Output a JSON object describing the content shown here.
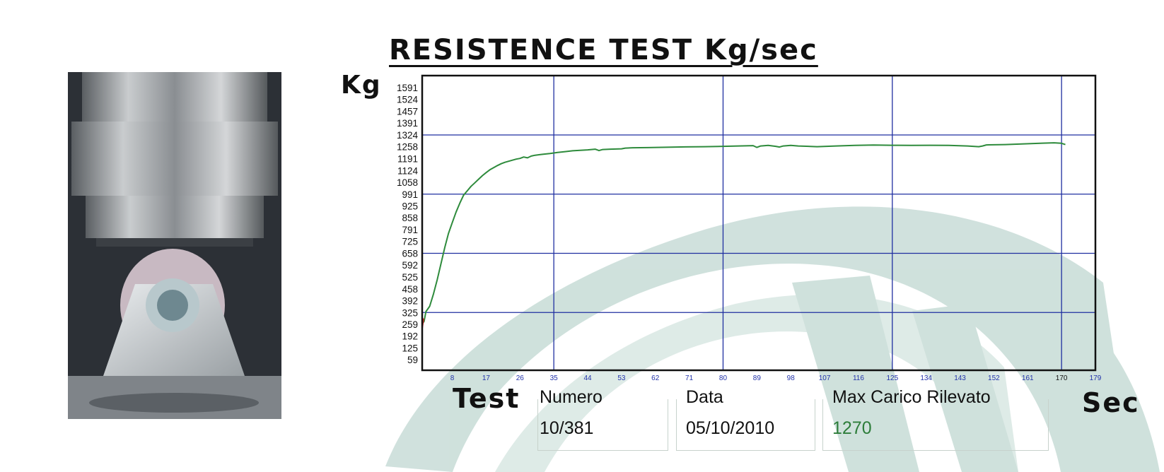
{
  "title": "RESISTENCE TEST Kg/sec",
  "units": {
    "y": "Kg",
    "x": "Sec"
  },
  "info": {
    "section_label": "Test",
    "numero_label": "Numero",
    "numero_value": "10/381",
    "data_label": "Data",
    "data_value": "05/10/2010",
    "max_label": "Max Carico Rilevato",
    "max_value": "1270"
  },
  "colors": {
    "curve": "#2e8b3c",
    "grid": "#1f2fa0",
    "x_tick_text": "#2233aa",
    "watermark": "#a9c9c1",
    "max_value": "#2d7d3a"
  },
  "chart_data": {
    "type": "line",
    "title": "RESISTENCE TEST Kg/sec",
    "xlabel": "Sec",
    "ylabel": "Kg",
    "xlim": [
      0,
      179
    ],
    "ylim": [
      0,
      1658
    ],
    "y_ticks": [
      59,
      125,
      192,
      259,
      325,
      392,
      458,
      525,
      592,
      658,
      725,
      791,
      858,
      925,
      991,
      1058,
      1124,
      1191,
      1258,
      1324,
      1391,
      1457,
      1524,
      1591
    ],
    "x_ticks": [
      8,
      17,
      26,
      35,
      44,
      53,
      62,
      71,
      80,
      89,
      98,
      107,
      116,
      125,
      134,
      143,
      152,
      161,
      170,
      179
    ],
    "grid_x": [
      35,
      80,
      125,
      170
    ],
    "grid_y": [
      325,
      658,
      991,
      1324
    ],
    "series": [
      {
        "x": [
          0,
          0.5,
          1,
          2,
          3,
          4,
          5,
          6,
          7,
          8,
          9,
          10,
          11,
          12,
          13,
          14,
          15,
          16,
          17,
          18,
          19,
          20,
          21,
          22,
          23,
          24,
          25,
          26,
          27,
          28,
          29,
          30,
          32,
          34,
          36,
          38,
          40,
          44,
          46,
          47,
          48,
          50,
          53,
          54,
          56,
          60,
          65,
          70,
          75,
          80,
          84,
          88,
          89,
          90,
          92,
          94,
          95,
          96,
          98,
          100,
          105,
          110,
          115,
          120,
          125,
          130,
          135,
          140,
          145,
          148,
          149,
          150,
          155,
          160,
          165,
          168,
          170,
          171
        ],
        "y": [
          260,
          275,
          330,
          360,
          430,
          510,
          600,
          690,
          770,
          830,
          890,
          940,
          985,
          1010,
          1035,
          1055,
          1075,
          1095,
          1112,
          1128,
          1140,
          1152,
          1162,
          1170,
          1176,
          1182,
          1188,
          1192,
          1200,
          1195,
          1205,
          1210,
          1215,
          1220,
          1226,
          1230,
          1235,
          1240,
          1244,
          1236,
          1242,
          1244,
          1246,
          1250,
          1252,
          1253,
          1255,
          1257,
          1258,
          1260,
          1262,
          1264,
          1254,
          1262,
          1265,
          1260,
          1256,
          1262,
          1265,
          1262,
          1258,
          1262,
          1265,
          1267,
          1266,
          1265,
          1266,
          1265,
          1262,
          1258,
          1262,
          1268,
          1270,
          1274,
          1278,
          1280,
          1277,
          1270
        ]
      }
    ]
  }
}
